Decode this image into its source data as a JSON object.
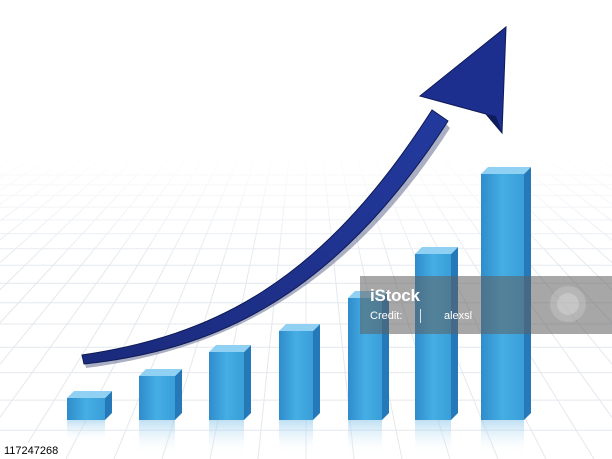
{
  "photo": {
    "description_free": true,
    "bar_count": 7,
    "colors": {
      "background": "#ffffff",
      "grid": "#e4e8ee",
      "bar_front": "#3b9fd7",
      "bar_side": "#2679b8",
      "bar_top": "#8fd0f3",
      "arrow": "#1b2f86",
      "arrow_edge": "#0e1a55"
    }
  },
  "watermark": {
    "logo": "iStock",
    "credit_prefix": "Credit:",
    "author": "alexsl"
  },
  "image_id": "117247268"
}
